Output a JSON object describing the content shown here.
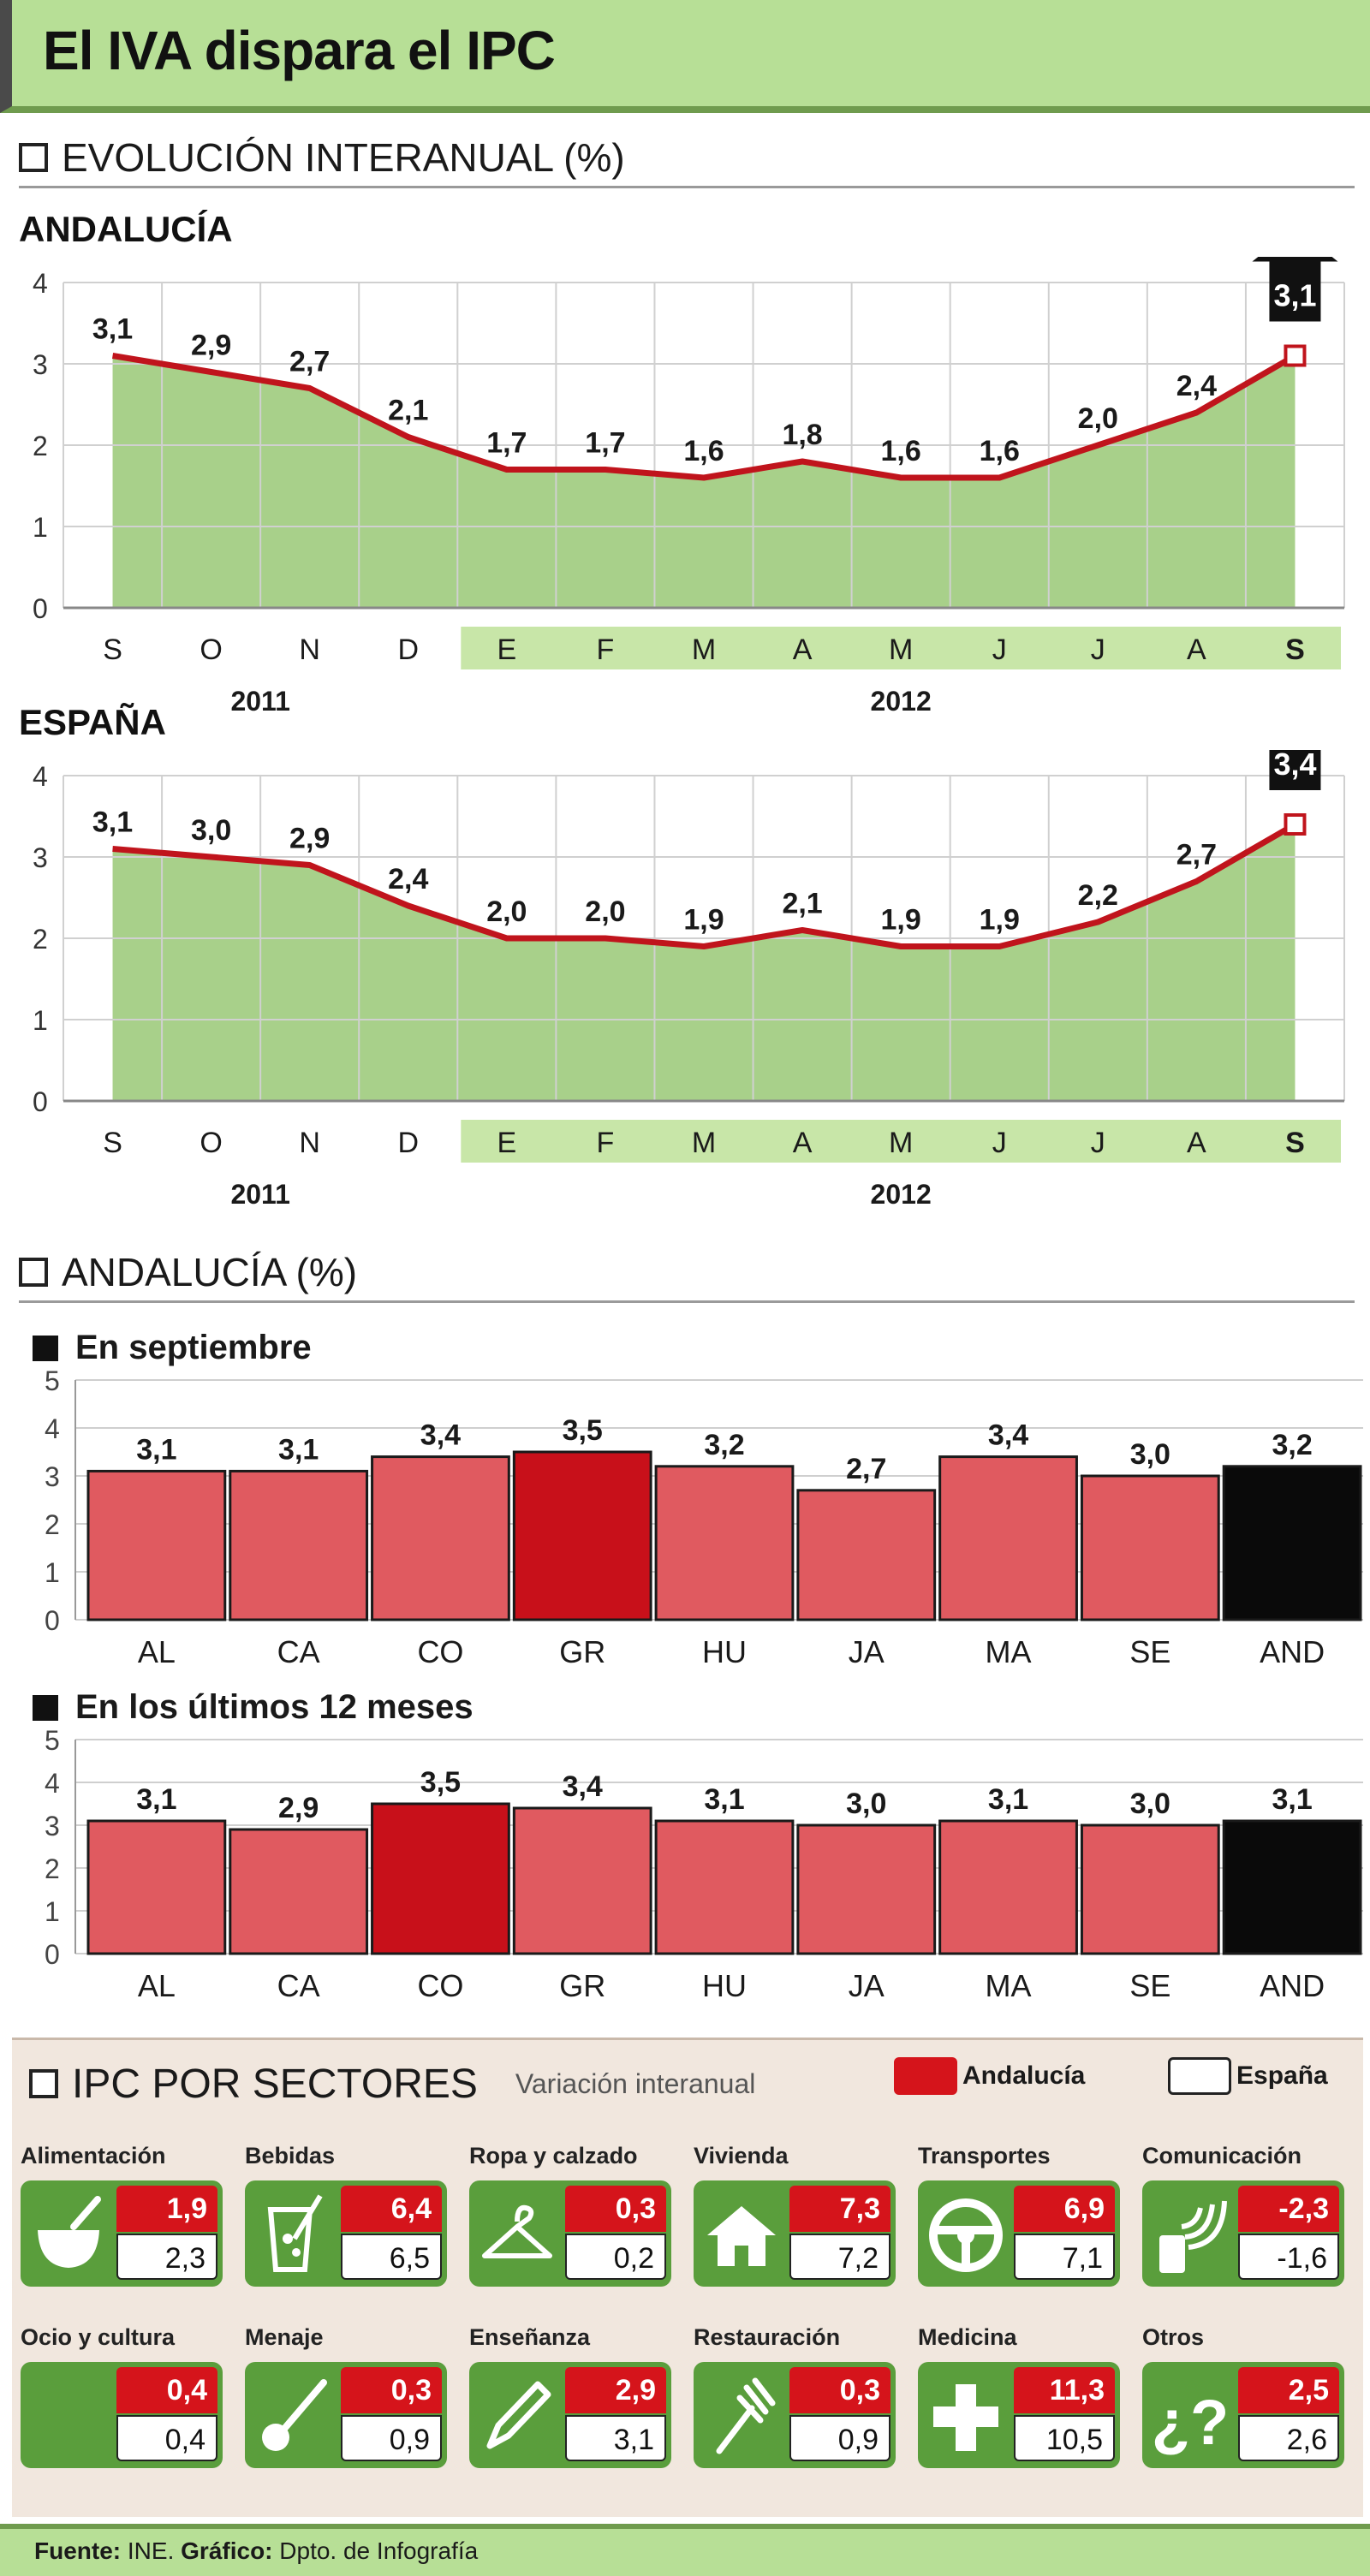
{
  "title": "El IVA dispara el IPC",
  "section1": {
    "title": "EVOLUCIÓN INTERANUAL (%)"
  },
  "section2": {
    "title": "ANDALUCÍA (%)"
  },
  "chart_data": [
    {
      "type": "area",
      "title": "ANDALUCÍA",
      "categories": [
        "S",
        "O",
        "N",
        "D",
        "E",
        "F",
        "M",
        "A",
        "M",
        "J",
        "J",
        "A",
        "S"
      ],
      "year_labels": [
        "2011",
        "2012"
      ],
      "values": [
        3.1,
        2.9,
        2.7,
        2.1,
        1.7,
        1.7,
        1.6,
        1.8,
        1.6,
        1.6,
        2.0,
        2.4,
        3.1
      ],
      "value_labels": [
        "3,1",
        "2,9",
        "2,7",
        "2,1",
        "1,7",
        "1,7",
        "1,6",
        "1,8",
        "1,6",
        "1,6",
        "2,0",
        "2,4",
        "3,1"
      ],
      "yticks": [
        "0",
        "1",
        "2",
        "3",
        "4"
      ],
      "ylim": [
        0,
        4
      ],
      "grid": true,
      "colors": {
        "area": "#a8d08a",
        "line": "#c0141c",
        "highlight_band": "#c8e6a8"
      }
    },
    {
      "type": "area",
      "title": "ESPAÑA",
      "categories": [
        "S",
        "O",
        "N",
        "D",
        "E",
        "F",
        "M",
        "A",
        "M",
        "J",
        "J",
        "A",
        "S"
      ],
      "year_labels": [
        "2011",
        "2012"
      ],
      "values": [
        3.1,
        3.0,
        2.9,
        2.4,
        2.0,
        2.0,
        1.9,
        2.1,
        1.9,
        1.9,
        2.2,
        2.7,
        3.4
      ],
      "value_labels": [
        "3,1",
        "3,0",
        "2,9",
        "2,4",
        "2,0",
        "2,0",
        "1,9",
        "2,1",
        "1,9",
        "1,9",
        "2,2",
        "2,7",
        "3,4"
      ],
      "yticks": [
        "0",
        "1",
        "2",
        "3",
        "4"
      ],
      "ylim": [
        0,
        4
      ],
      "grid": true,
      "colors": {
        "area": "#a8d08a",
        "line": "#c0141c",
        "highlight_band": "#c8e6a8"
      }
    },
    {
      "type": "bar",
      "title": "En septiembre",
      "categories": [
        "AL",
        "CA",
        "CO",
        "GR",
        "HU",
        "JA",
        "MA",
        "SE",
        "AND"
      ],
      "values": [
        3.1,
        3.1,
        3.4,
        3.5,
        3.2,
        2.7,
        3.4,
        3.0,
        3.2
      ],
      "value_labels": [
        "3,1",
        "3,1",
        "3,4",
        "3,5",
        "3,2",
        "2,7",
        "3,4",
        "3,0",
        "3,2"
      ],
      "yticks": [
        "0",
        "1",
        "2",
        "3",
        "4",
        "5"
      ],
      "ylim": [
        0,
        5
      ],
      "highlight": "GR",
      "total": "AND",
      "colors": {
        "bar": "#e05a60",
        "highlight": "#c8101a",
        "total": "#0a0a0a"
      }
    },
    {
      "type": "bar",
      "title": "En los últimos 12 meses",
      "categories": [
        "AL",
        "CA",
        "CO",
        "GR",
        "HU",
        "JA",
        "MA",
        "SE",
        "AND"
      ],
      "values": [
        3.1,
        2.9,
        3.5,
        3.4,
        3.1,
        3.0,
        3.1,
        3.0,
        3.1
      ],
      "value_labels": [
        "3,1",
        "2,9",
        "3,5",
        "3,4",
        "3,1",
        "3,0",
        "3,1",
        "3,0",
        "3,1"
      ],
      "yticks": [
        "0",
        "1",
        "2",
        "3",
        "4",
        "5"
      ],
      "ylim": [
        0,
        5
      ],
      "highlight": "CO",
      "total": "AND",
      "colors": {
        "bar": "#e05a60",
        "highlight": "#c8101a",
        "total": "#0a0a0a"
      }
    }
  ],
  "sectors": {
    "title": "IPC POR SECTORES",
    "subtitle": "Variación interanual",
    "legend_andalucia": "Andalucía",
    "legend_espana": "España",
    "items": [
      {
        "name": "Alimentación",
        "andalucia": "1,9",
        "espana": "2,3",
        "icon": "bowl-spoon-icon"
      },
      {
        "name": "Bebidas",
        "andalucia": "6,4",
        "espana": "6,5",
        "icon": "glass-straw-icon"
      },
      {
        "name": "Ropa y calzado",
        "andalucia": "0,3",
        "espana": "0,2",
        "icon": "hanger-icon"
      },
      {
        "name": "Vivienda",
        "andalucia": "7,3",
        "espana": "7,2",
        "icon": "house-icon"
      },
      {
        "name": "Transportes",
        "andalucia": "6,9",
        "espana": "7,1",
        "icon": "steering-wheel-icon"
      },
      {
        "name": "Comunicación",
        "andalucia": "-2,3",
        "espana": "-1,6",
        "icon": "phone-signal-icon"
      },
      {
        "name": "Ocio y cultura",
        "andalucia": "0,4",
        "espana": "0,4",
        "icon": "blank-icon"
      },
      {
        "name": "Menaje",
        "andalucia": "0,3",
        "espana": "0,9",
        "icon": "ladle-icon"
      },
      {
        "name": "Enseñanza",
        "andalucia": "2,9",
        "espana": "3,1",
        "icon": "pencil-icon"
      },
      {
        "name": "Restauración",
        "andalucia": "0,3",
        "espana": "0,9",
        "icon": "fork-icon"
      },
      {
        "name": "Medicina",
        "andalucia": "11,3",
        "espana": "10,5",
        "icon": "cross-icon"
      },
      {
        "name": "Otros",
        "andalucia": "2,5",
        "espana": "2,6",
        "icon": "question-icon"
      }
    ]
  },
  "source": {
    "label1": "Fuente:",
    "value1": "INE.",
    "label2": "Gráfico:",
    "value2": "Dpto. de Infografía"
  }
}
